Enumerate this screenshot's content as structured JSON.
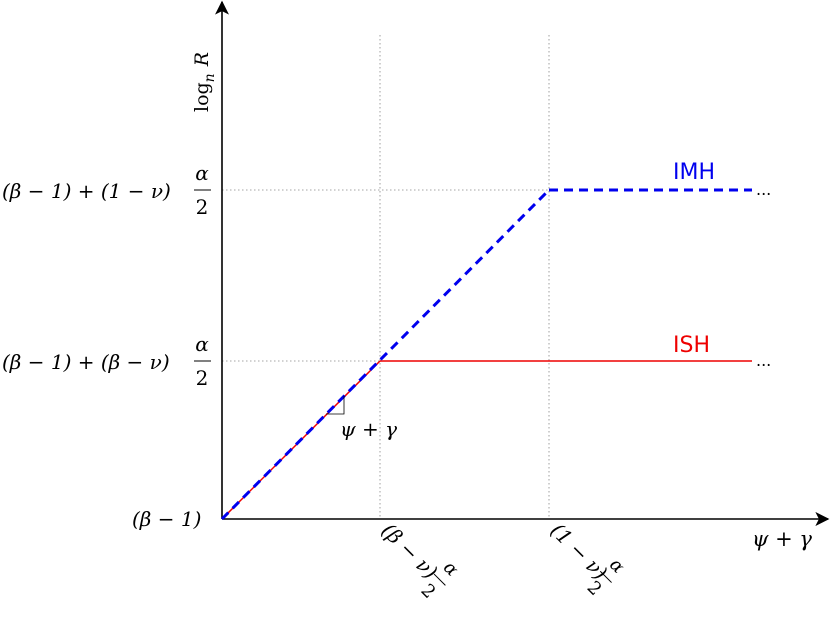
{
  "axes": {
    "x_label": "ψ + γ",
    "y_label_log": "log",
    "y_label_sub": "n",
    "y_label_var": "R"
  },
  "y_ticks": {
    "origin": "(β − 1)",
    "ish_level_prefix": "(β − 1) + (β − ν)",
    "imh_level_prefix": "(β − 1) + (1 − ν)"
  },
  "x_ticks": {
    "first": "(β − ν)",
    "second": "(1 − ν)"
  },
  "fraction": {
    "numerator": "α",
    "denominator": "2"
  },
  "slope_label": "ψ + γ",
  "series": {
    "imh": {
      "name": "IMH",
      "color": "#0000ee",
      "style": "dashed"
    },
    "ish": {
      "name": "ISH",
      "color": "#ee0000",
      "style": "solid"
    }
  },
  "ellipsis": "..."
}
